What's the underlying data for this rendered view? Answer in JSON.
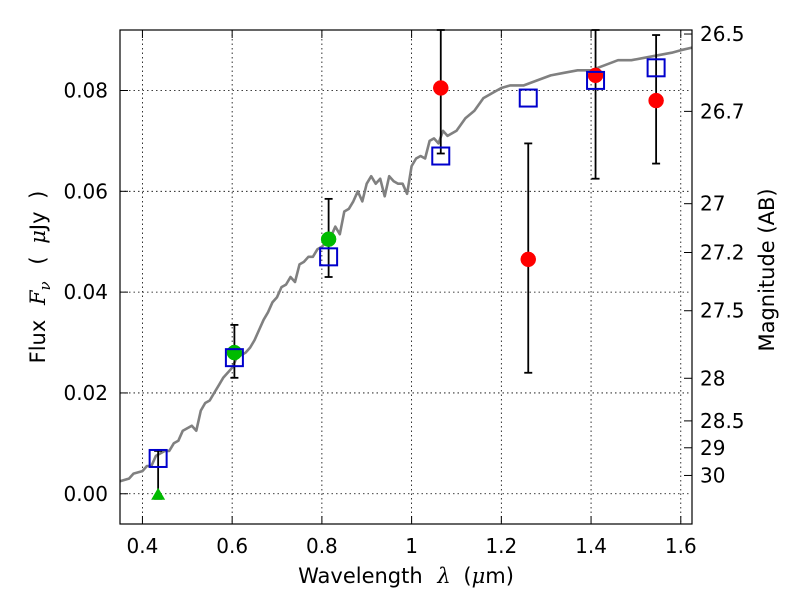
{
  "chart_data": {
    "type": "scatter",
    "xlabel": "Wavelength",
    "xlabel_symbol": "λ",
    "xlabel_unit_open": "(",
    "xlabel_unit_mu": "μ",
    "xlabel_unit_rest": "m)",
    "ylabel": "Flux",
    "ylabel_symbol": "F",
    "ylabel_subscript": "ν",
    "ylabel_unit_open": "(",
    "ylabel_unit_mu": "μ",
    "ylabel_unit_rest": "Jy",
    "ylabel_unit_close": ")",
    "y2label": "Magnitude (AB)",
    "xlim": [
      0.35,
      1.625
    ],
    "ylim": [
      -0.006,
      0.092
    ],
    "xticks": [
      {
        "value": 0.4,
        "label": "0.4"
      },
      {
        "value": 0.6,
        "label": "0.6"
      },
      {
        "value": 0.8,
        "label": "0.8"
      },
      {
        "value": 1.0,
        "label": "1"
      },
      {
        "value": 1.2,
        "label": "1.2"
      },
      {
        "value": 1.4,
        "label": "1.4"
      },
      {
        "value": 1.6,
        "label": "1.6"
      }
    ],
    "yticks": [
      {
        "value": 0.0,
        "label": "0.00"
      },
      {
        "value": 0.02,
        "label": "0.02"
      },
      {
        "value": 0.04,
        "label": "0.04"
      },
      {
        "value": 0.06,
        "label": "0.06"
      },
      {
        "value": 0.08,
        "label": "0.08"
      }
    ],
    "magnitude_ticks": [
      {
        "value": 26.5,
        "label": "26.5"
      },
      {
        "value": 26.7,
        "label": "26.7"
      },
      {
        "value": 27.0,
        "label": "27"
      },
      {
        "value": 27.2,
        "label": "27.2"
      },
      {
        "value": 27.5,
        "label": "27.5"
      },
      {
        "value": 28.0,
        "label": "28"
      },
      {
        "value": 28.5,
        "label": "28.5"
      },
      {
        "value": 29.0,
        "label": "29"
      },
      {
        "value": 30.0,
        "label": "30"
      }
    ],
    "grid": true,
    "colors": {
      "model": "#808080",
      "observed": "#ff0000",
      "detected": "#00bb00",
      "synthetic": "#0000cc",
      "errorbar": "#000000"
    },
    "model_spectrum": {
      "x": [
        0.35,
        0.37,
        0.38,
        0.4,
        0.41,
        0.42,
        0.43,
        0.45,
        0.46,
        0.47,
        0.48,
        0.49,
        0.5,
        0.51,
        0.52,
        0.53,
        0.54,
        0.55,
        0.56,
        0.57,
        0.58,
        0.59,
        0.6,
        0.61,
        0.62,
        0.63,
        0.64,
        0.65,
        0.66,
        0.67,
        0.68,
        0.69,
        0.7,
        0.71,
        0.72,
        0.73,
        0.74,
        0.75,
        0.76,
        0.77,
        0.78,
        0.79,
        0.8,
        0.81,
        0.82,
        0.83,
        0.84,
        0.85,
        0.86,
        0.87,
        0.88,
        0.89,
        0.9,
        0.91,
        0.92,
        0.93,
        0.94,
        0.95,
        0.96,
        0.97,
        0.98,
        0.99,
        1.0,
        1.01,
        1.02,
        1.03,
        1.04,
        1.05,
        1.06,
        1.07,
        1.08,
        1.1,
        1.12,
        1.14,
        1.16,
        1.18,
        1.2,
        1.22,
        1.25,
        1.28,
        1.31,
        1.34,
        1.37,
        1.4,
        1.43,
        1.46,
        1.49,
        1.52,
        1.55,
        1.58,
        1.6,
        1.625
      ],
      "y": [
        0.0025,
        0.003,
        0.004,
        0.0045,
        0.0055,
        0.0055,
        0.0075,
        0.0085,
        0.0085,
        0.01,
        0.0105,
        0.0125,
        0.013,
        0.0135,
        0.0125,
        0.0165,
        0.018,
        0.0185,
        0.02,
        0.0215,
        0.023,
        0.024,
        0.025,
        0.027,
        0.0275,
        0.028,
        0.029,
        0.0305,
        0.0325,
        0.0345,
        0.036,
        0.038,
        0.039,
        0.041,
        0.0415,
        0.043,
        0.042,
        0.0455,
        0.046,
        0.047,
        0.047,
        0.0485,
        0.049,
        0.05,
        0.051,
        0.053,
        0.0515,
        0.056,
        0.0565,
        0.058,
        0.06,
        0.058,
        0.0615,
        0.063,
        0.0615,
        0.0625,
        0.059,
        0.063,
        0.062,
        0.0615,
        0.0615,
        0.0595,
        0.065,
        0.0665,
        0.067,
        0.0665,
        0.07,
        0.0705,
        0.0695,
        0.072,
        0.071,
        0.072,
        0.0745,
        0.076,
        0.0785,
        0.0795,
        0.0805,
        0.081,
        0.081,
        0.082,
        0.083,
        0.0835,
        0.084,
        0.084,
        0.085,
        0.086,
        0.086,
        0.0865,
        0.087,
        0.0875,
        0.088,
        0.0885
      ]
    },
    "series": [
      {
        "marker": "circle",
        "color": "red",
        "points": [
          {
            "x": 1.065,
            "y": 0.0805,
            "yerr_low": 0.0675,
            "yerr_high": 0.092
          },
          {
            "x": 1.26,
            "y": 0.0465,
            "yerr_low": 0.024,
            "yerr_high": 0.0695
          },
          {
            "x": 1.41,
            "y": 0.083,
            "yerr_low": 0.0625,
            "yerr_high": 0.092
          },
          {
            "x": 1.545,
            "y": 0.078,
            "yerr_low": 0.0655,
            "yerr_high": 0.091
          }
        ]
      },
      {
        "marker": "circle",
        "color": "green",
        "points": [
          {
            "x": 0.605,
            "y": 0.028,
            "yerr_low": 0.023,
            "yerr_high": 0.0335
          },
          {
            "x": 0.815,
            "y": 0.0505,
            "yerr_low": 0.043,
            "yerr_high": 0.0585
          }
        ]
      },
      {
        "marker": "triangle",
        "color": "green",
        "points": [
          {
            "x": 0.435,
            "y": 0.0,
            "yerr_low": -0.001,
            "yerr_high": 0.0085
          }
        ]
      },
      {
        "marker": "square",
        "color": "blue",
        "points": [
          {
            "x": 0.435,
            "y": 0.007
          },
          {
            "x": 0.605,
            "y": 0.027
          },
          {
            "x": 0.815,
            "y": 0.047
          },
          {
            "x": 1.065,
            "y": 0.067
          },
          {
            "x": 1.26,
            "y": 0.0785
          },
          {
            "x": 1.41,
            "y": 0.082
          },
          {
            "x": 1.545,
            "y": 0.0845
          }
        ]
      }
    ]
  }
}
